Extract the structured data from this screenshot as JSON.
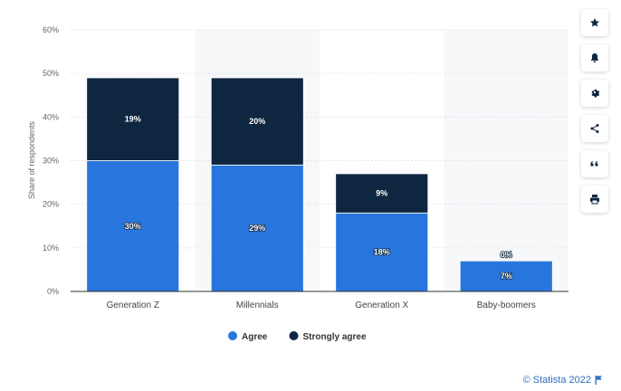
{
  "chart_data": {
    "type": "bar",
    "stacked": true,
    "categories": [
      "Generation Z",
      "Millennials",
      "Generation X",
      "Baby-boomers"
    ],
    "series": [
      {
        "name": "Agree",
        "values": [
          30,
          29,
          18,
          7
        ],
        "labels": [
          "30%",
          "29%",
          "18%",
          "7%"
        ],
        "color": "#2876dd"
      },
      {
        "name": "Strongly agree",
        "values": [
          19,
          20,
          9,
          0
        ],
        "labels": [
          "19%",
          "20%",
          "9%",
          "0%"
        ],
        "color": "#0f2640"
      }
    ],
    "ylabel": "Share of respondents",
    "xlabel": "",
    "ylim": [
      0,
      60
    ],
    "yticks": [
      0,
      10,
      20,
      30,
      40,
      50,
      60
    ],
    "ytick_labels": [
      "0%",
      "10%",
      "20%",
      "30%",
      "40%",
      "50%",
      "60%"
    ],
    "legend_position": "bottom",
    "grid": true
  },
  "toolbar": {
    "buttons": [
      {
        "name": "favorite-button",
        "icon": "star-icon"
      },
      {
        "name": "notification-button",
        "icon": "bell-icon"
      },
      {
        "name": "settings-button",
        "icon": "gear-icon"
      },
      {
        "name": "share-button",
        "icon": "share-icon"
      },
      {
        "name": "cite-button",
        "icon": "quote-icon"
      },
      {
        "name": "print-button",
        "icon": "printer-icon"
      }
    ]
  },
  "credit": {
    "text": "© Statista 2022"
  },
  "colors": {
    "accent": "#2a6fbd",
    "icon": "#0f2640"
  }
}
